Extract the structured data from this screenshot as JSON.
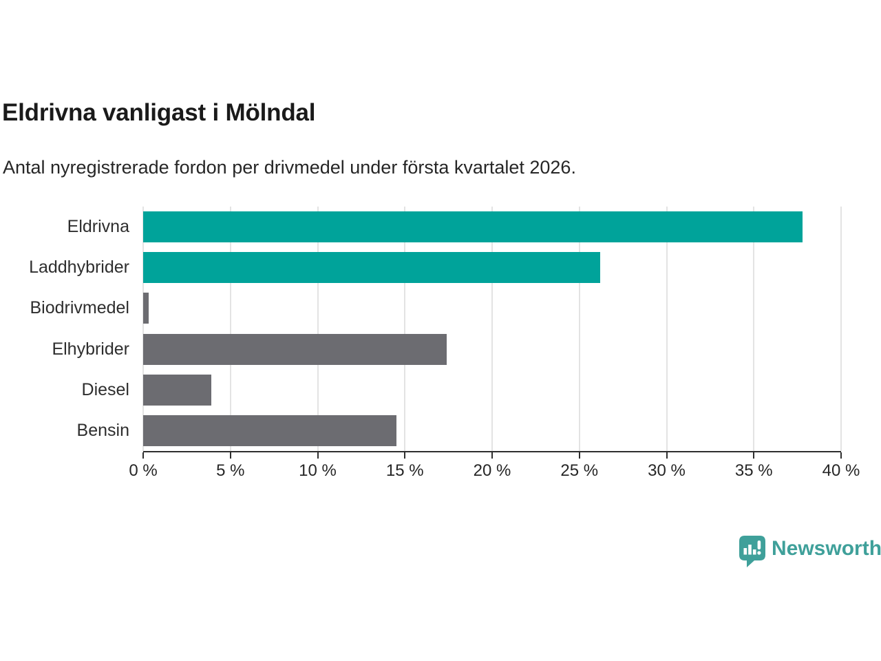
{
  "header": {
    "title": "Eldrivna vanligast i Mölndal",
    "subtitle": "Antal nyregistrerade fordon per drivmedel under första kvartalet 2026."
  },
  "chart_data": {
    "type": "bar",
    "orientation": "horizontal",
    "title": "Eldrivna vanligast i Mölndal",
    "subtitle": "Antal nyregistrerade fordon per drivmedel under första kvartalet 2026.",
    "categories": [
      "Eldrivna",
      "Laddhybrider",
      "Biodrivmedel",
      "Elhybrider",
      "Diesel",
      "Bensin"
    ],
    "values": [
      37.8,
      26.2,
      0.3,
      17.4,
      3.9,
      14.5
    ],
    "unit": "%",
    "bar_colors": [
      "#00a39a",
      "#00a39a",
      "#6c6c71",
      "#6c6c71",
      "#6c6c71",
      "#6c6c71"
    ],
    "xlim": [
      0,
      40
    ],
    "xticks": [
      0,
      5,
      10,
      15,
      20,
      25,
      30,
      35,
      40
    ],
    "xtick_labels": [
      "0 %",
      "5 %",
      "10 %",
      "15 %",
      "20 %",
      "25 %",
      "30 %",
      "35 %",
      "40 %"
    ],
    "grid": true,
    "legend": false
  },
  "branding": {
    "logo_text": "Newsworthy"
  },
  "colors": {
    "accent_teal": "#00a39a",
    "neutral_gray": "#6c6c71",
    "logo_teal": "#3fa09a",
    "gridline": "#e3e3e3",
    "axis": "#2e2e2e",
    "title_text": "#1a1a1a",
    "body_text": "#262626",
    "background": "#ffffff"
  }
}
